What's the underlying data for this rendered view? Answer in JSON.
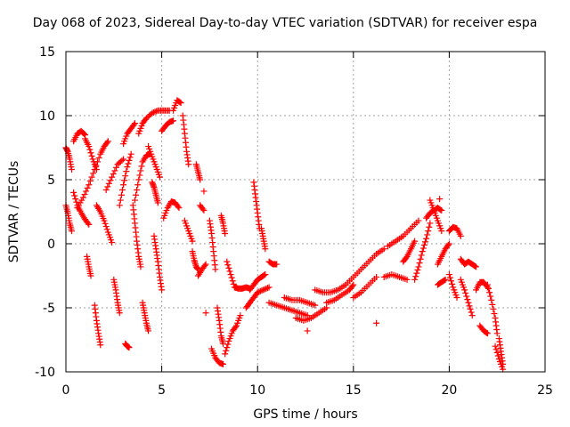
{
  "chart_data": {
    "type": "scatter",
    "title": "Day 068 of 2023, Sidereal Day-to-day VTEC variation (SDTVAR) for receiver espa",
    "xlabel": "GPS time / hours",
    "ylabel": "SDTVAR / TECUs",
    "xlim": [
      0,
      25
    ],
    "ylim": [
      -10,
      15
    ],
    "xticks": [
      0,
      5,
      10,
      15,
      20,
      25
    ],
    "yticks": [
      -10,
      -5,
      0,
      5,
      10,
      15
    ],
    "grid": true,
    "marker": "+",
    "colors": {
      "points": "#ff0000",
      "grid": "#a0a0a0",
      "axis": "#000000"
    },
    "tracks": [
      {
        "x": [
          0.0,
          0.1,
          0.2,
          0.3
        ],
        "y": [
          7.5,
          7.2,
          6.6,
          5.8
        ]
      },
      {
        "x": [
          0.0,
          0.1,
          0.2,
          0.3
        ],
        "y": [
          3.0,
          2.4,
          1.6,
          1.0
        ]
      },
      {
        "x": [
          0.4,
          0.6,
          0.8,
          1.0
        ],
        "y": [
          8.0,
          8.6,
          8.8,
          8.5
        ]
      },
      {
        "x": [
          0.4,
          0.6,
          0.8,
          1.0,
          1.2
        ],
        "y": [
          4.0,
          3.0,
          2.4,
          1.9,
          1.5
        ]
      },
      {
        "x": [
          0.6,
          0.9,
          1.2,
          1.5,
          1.8,
          2.0,
          2.2
        ],
        "y": [
          2.8,
          3.6,
          4.6,
          5.8,
          7.0,
          7.6,
          8.0
        ]
      },
      {
        "x": [
          1.0,
          1.2,
          1.4,
          1.6
        ],
        "y": [
          8.2,
          7.6,
          6.6,
          5.8
        ]
      },
      {
        "x": [
          1.1,
          1.2,
          1.3
        ],
        "y": [
          -1.0,
          -1.8,
          -2.5
        ]
      },
      {
        "x": [
          1.5,
          1.6,
          1.7,
          1.8
        ],
        "y": [
          -4.8,
          -6.0,
          -7.0,
          -7.9
        ]
      },
      {
        "x": [
          1.6,
          1.8,
          2.0,
          2.2,
          2.4
        ],
        "y": [
          3.0,
          2.5,
          1.8,
          0.9,
          0.1
        ]
      },
      {
        "x": [
          2.1,
          2.4,
          2.7,
          3.0
        ],
        "y": [
          4.2,
          5.2,
          6.2,
          6.6
        ]
      },
      {
        "x": [
          2.5,
          2.6,
          2.7,
          2.8
        ],
        "y": [
          -2.8,
          -3.6,
          -4.6,
          -5.4
        ]
      },
      {
        "x": [
          2.8,
          3.0,
          3.2,
          3.4
        ],
        "y": [
          3.0,
          4.6,
          6.0,
          7.0
        ]
      },
      {
        "x": [
          3.1,
          3.2,
          3.3
        ],
        "y": [
          -7.8,
          -8.0,
          -8.1
        ]
      },
      {
        "x": [
          3.0,
          3.2,
          3.4,
          3.6
        ],
        "y": [
          7.8,
          8.6,
          9.0,
          9.4
        ]
      },
      {
        "x": [
          3.5,
          3.6,
          3.7,
          3.8,
          3.9
        ],
        "y": [
          3.0,
          1.6,
          0.2,
          -1.0,
          -1.8
        ]
      },
      {
        "x": [
          3.6,
          3.8,
          4.0,
          4.2,
          4.4
        ],
        "y": [
          3.4,
          5.0,
          6.4,
          6.9,
          7.0
        ]
      },
      {
        "x": [
          3.8,
          4.0,
          4.2,
          4.5,
          4.8,
          5.1,
          5.4
        ],
        "y": [
          8.6,
          9.4,
          9.8,
          10.2,
          10.4,
          10.4,
          10.4
        ]
      },
      {
        "x": [
          4.0,
          4.1,
          4.2,
          4.3
        ],
        "y": [
          -4.6,
          -5.4,
          -6.2,
          -6.8
        ]
      },
      {
        "x": [
          4.3,
          4.5,
          4.7,
          4.9
        ],
        "y": [
          7.6,
          6.8,
          6.0,
          5.2
        ]
      },
      {
        "x": [
          4.5,
          4.6,
          4.7,
          4.8
        ],
        "y": [
          4.8,
          4.4,
          3.8,
          3.2
        ]
      },
      {
        "x": [
          4.6,
          4.7,
          4.8,
          4.9,
          5.0
        ],
        "y": [
          0.6,
          -0.4,
          -1.4,
          -2.6,
          -3.6
        ]
      },
      {
        "x": [
          5.0,
          5.2,
          5.4,
          5.6
        ],
        "y": [
          8.8,
          9.2,
          9.5,
          9.6
        ]
      },
      {
        "x": [
          5.1,
          5.3,
          5.5,
          5.7,
          5.9
        ],
        "y": [
          2.0,
          2.8,
          3.3,
          3.2,
          2.8
        ]
      },
      {
        "x": [
          5.6,
          5.8,
          6.0
        ],
        "y": [
          10.4,
          11.2,
          11.0
        ]
      },
      {
        "x": [
          6.1,
          6.2,
          6.3,
          6.4
        ],
        "y": [
          10.0,
          8.6,
          7.2,
          6.2
        ]
      },
      {
        "x": [
          6.2,
          6.4,
          6.6
        ],
        "y": [
          1.8,
          1.0,
          0.2
        ]
      },
      {
        "x": [
          6.6,
          6.7,
          6.8,
          6.9
        ],
        "y": [
          -0.6,
          -1.3,
          -1.8,
          -2.0
        ]
      },
      {
        "x": [
          6.8,
          6.9,
          7.0
        ],
        "y": [
          6.2,
          5.6,
          5.0
        ]
      },
      {
        "x": [
          6.9,
          7.1,
          7.3
        ],
        "y": [
          -2.5,
          -2.0,
          -1.6
        ]
      },
      {
        "x": [
          7.0,
          7.2
        ],
        "y": [
          3.0,
          2.6
        ]
      },
      {
        "x": [
          7.2
        ],
        "y": [
          4.1
        ]
      },
      {
        "x": [
          7.3
        ],
        "y": [
          -5.4
        ]
      },
      {
        "x": [
          7.5,
          7.6,
          7.7,
          7.8
        ],
        "y": [
          1.8,
          0.8,
          -0.6,
          -2.0
        ]
      },
      {
        "x": [
          7.6,
          7.8,
          8.0,
          8.2
        ],
        "y": [
          -8.2,
          -8.9,
          -9.3,
          -9.4
        ]
      },
      {
        "x": [
          7.9,
          8.0,
          8.1,
          8.2
        ],
        "y": [
          -5.0,
          -6.0,
          -7.2,
          -7.8
        ]
      },
      {
        "x": [
          8.1,
          8.2,
          8.3
        ],
        "y": [
          2.2,
          1.6,
          0.8
        ]
      },
      {
        "x": [
          8.4,
          8.6,
          8.8,
          9.0,
          9.2,
          9.4,
          9.6
        ],
        "y": [
          -1.4,
          -2.4,
          -3.4,
          -3.5,
          -3.5,
          -3.4,
          -3.5
        ]
      },
      {
        "x": [
          8.3,
          8.5,
          8.7,
          8.9,
          9.1
        ],
        "y": [
          -8.6,
          -7.6,
          -6.8,
          -6.4,
          -5.6
        ]
      },
      {
        "x": [
          9.6,
          9.8,
          10.0,
          10.2,
          10.4
        ],
        "y": [
          -3.6,
          -3.2,
          -2.8,
          -2.6,
          -2.4
        ]
      },
      {
        "x": [
          9.8,
          9.9,
          10.0,
          10.1
        ],
        "y": [
          4.8,
          3.6,
          2.4,
          1.2
        ]
      },
      {
        "x": [
          10.2,
          10.3,
          10.4
        ],
        "y": [
          1.2,
          0.4,
          -0.4
        ]
      },
      {
        "x": [
          9.4,
          9.6,
          9.8,
          10.0,
          10.3,
          10.6
        ],
        "y": [
          -5.0,
          -4.6,
          -4.2,
          -3.8,
          -3.6,
          -3.4
        ]
      },
      {
        "x": [
          10.6,
          10.8,
          11.0
        ],
        "y": [
          -1.4,
          -1.6,
          -1.6
        ]
      },
      {
        "x": [
          10.6,
          11.0,
          11.4,
          11.8,
          12.2,
          12.6
        ],
        "y": [
          -4.6,
          -4.8,
          -5.0,
          -5.2,
          -5.4,
          -5.6
        ]
      },
      {
        "x": [
          11.4,
          11.8,
          12.2,
          12.6,
          13.0
        ],
        "y": [
          -4.2,
          -4.4,
          -4.4,
          -4.6,
          -4.8
        ]
      },
      {
        "x": [
          12.0,
          12.4,
          12.8,
          13.2,
          13.6
        ],
        "y": [
          -5.8,
          -6.0,
          -5.8,
          -5.4,
          -5.0
        ]
      },
      {
        "x": [
          12.6
        ],
        "y": [
          -6.8
        ]
      },
      {
        "x": [
          13.0,
          13.4,
          13.8,
          14.2,
          14.6
        ],
        "y": [
          -3.6,
          -3.8,
          -3.8,
          -3.6,
          -3.2
        ]
      },
      {
        "x": [
          13.6,
          14.0,
          14.4,
          14.8,
          15.0
        ],
        "y": [
          -4.6,
          -4.4,
          -4.0,
          -3.6,
          -3.2
        ]
      },
      {
        "x": [
          14.6,
          15.0,
          15.4,
          15.8,
          16.2,
          16.6
        ],
        "y": [
          -3.2,
          -2.6,
          -2.0,
          -1.4,
          -0.8,
          -0.4
        ]
      },
      {
        "x": [
          15.0,
          15.4,
          15.8,
          16.2
        ],
        "y": [
          -4.2,
          -3.8,
          -3.2,
          -2.6
        ]
      },
      {
        "x": [
          16.2
        ],
        "y": [
          -6.2
        ]
      },
      {
        "x": [
          16.6,
          17.0,
          17.4,
          17.8
        ],
        "y": [
          -2.6,
          -2.4,
          -2.6,
          -2.8
        ]
      },
      {
        "x": [
          16.8,
          17.2,
          17.6,
          18.0,
          18.4
        ],
        "y": [
          -0.2,
          0.2,
          0.6,
          1.2,
          1.8
        ]
      },
      {
        "x": [
          17.6,
          17.8,
          18.0,
          18.2
        ],
        "y": [
          -1.4,
          -1.0,
          -0.4,
          0.2
        ]
      },
      {
        "x": [
          18.2,
          18.4,
          18.6,
          18.8,
          19.0
        ],
        "y": [
          -2.8,
          -1.8,
          -0.6,
          0.4,
          1.6
        ]
      },
      {
        "x": [
          18.8,
          19.0,
          19.2,
          19.4,
          19.6
        ],
        "y": [
          2.0,
          2.4,
          2.6,
          2.8,
          2.6
        ]
      },
      {
        "x": [
          19.0,
          19.2,
          19.4,
          19.6
        ],
        "y": [
          3.4,
          2.6,
          1.8,
          1.0
        ]
      },
      {
        "x": [
          19.5
        ],
        "y": [
          3.5
        ]
      },
      {
        "x": [
          19.4,
          19.6,
          19.8,
          20.0
        ],
        "y": [
          -1.6,
          -1.0,
          -0.4,
          0.0
        ]
      },
      {
        "x": [
          19.4,
          19.6,
          19.8
        ],
        "y": [
          -3.2,
          -3.0,
          -2.8
        ]
      },
      {
        "x": [
          20.0,
          20.2,
          20.4,
          20.6
        ],
        "y": [
          1.0,
          1.3,
          1.2,
          0.6
        ]
      },
      {
        "x": [
          20.0,
          20.2,
          20.4
        ],
        "y": [
          -2.4,
          -3.4,
          -4.2
        ]
      },
      {
        "x": [
          20.6,
          20.8,
          21.0,
          21.2,
          21.4
        ],
        "y": [
          -1.2,
          -1.6,
          -1.4,
          -1.6,
          -1.8
        ]
      },
      {
        "x": [
          20.6,
          20.8,
          21.0,
          21.2
        ],
        "y": [
          -2.8,
          -3.6,
          -4.6,
          -5.6
        ]
      },
      {
        "x": [
          21.4,
          21.6,
          21.8,
          22.0
        ],
        "y": [
          -3.6,
          -3.0,
          -3.0,
          -3.4
        ]
      },
      {
        "x": [
          21.6,
          21.8,
          22.0
        ],
        "y": [
          -6.4,
          -6.8,
          -7.0
        ]
      },
      {
        "x": [
          22.0,
          22.2,
          22.4,
          22.5
        ],
        "y": [
          -3.2,
          -4.4,
          -5.8,
          -7.0
        ]
      },
      {
        "x": [
          22.4,
          22.6,
          22.8
        ],
        "y": [
          -8.0,
          -9.0,
          -9.8
        ]
      },
      {
        "x": [
          22.6,
          22.7,
          22.8
        ],
        "y": [
          -7.4,
          -8.4,
          -9.4
        ]
      }
    ]
  }
}
